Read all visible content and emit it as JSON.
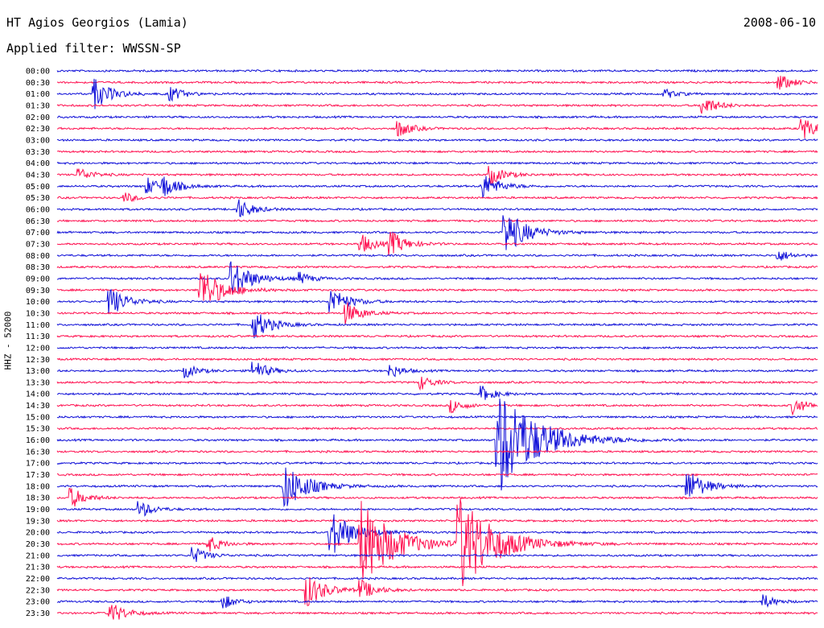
{
  "header": {
    "station": "HT Agios Georgios (Lamia)",
    "date": "2008-06-10",
    "filter": "Applied filter: WWSSN-SP"
  },
  "chart_data": {
    "type": "line",
    "title": "HT Agios Georgios (Lamia)",
    "ylabel": "HHZ - 52000",
    "xlabel": "",
    "trace_colors": [
      "#1010d8",
      "#ff1050"
    ],
    "rows": [
      "00:00",
      "00:30",
      "01:00",
      "01:30",
      "02:00",
      "02:30",
      "03:00",
      "03:30",
      "04:00",
      "04:30",
      "05:00",
      "05:30",
      "06:00",
      "06:30",
      "07:00",
      "07:30",
      "08:00",
      "08:30",
      "09:00",
      "09:30",
      "10:00",
      "10:30",
      "11:00",
      "11:30",
      "12:00",
      "12:30",
      "13:00",
      "13:30",
      "14:00",
      "14:30",
      "15:00",
      "15:30",
      "16:00",
      "16:30",
      "17:00",
      "17:30",
      "18:00",
      "18:30",
      "19:00",
      "19:30",
      "20:00",
      "20:30",
      "21:00",
      "21:30",
      "22:00",
      "22:30",
      "23:00",
      "23:30"
    ],
    "events": [
      {
        "row": "00:30",
        "pos": 0.95,
        "amp": 10
      },
      {
        "row": "01:00",
        "pos": 0.05,
        "amp": 18
      },
      {
        "row": "01:00",
        "pos": 0.15,
        "amp": 9
      },
      {
        "row": "01:00",
        "pos": 0.8,
        "amp": 6
      },
      {
        "row": "01:30",
        "pos": 0.85,
        "amp": 12
      },
      {
        "row": "02:30",
        "pos": 0.45,
        "amp": 10
      },
      {
        "row": "02:30",
        "pos": 0.98,
        "amp": 14
      },
      {
        "row": "04:30",
        "pos": 0.03,
        "amp": 8
      },
      {
        "row": "04:30",
        "pos": 0.57,
        "amp": 12
      },
      {
        "row": "05:00",
        "pos": 0.12,
        "amp": 10
      },
      {
        "row": "05:00",
        "pos": 0.14,
        "amp": 12
      },
      {
        "row": "05:00",
        "pos": 0.56,
        "amp": 16
      },
      {
        "row": "05:30",
        "pos": 0.09,
        "amp": 6
      },
      {
        "row": "06:00",
        "pos": 0.24,
        "amp": 12
      },
      {
        "row": "07:00",
        "pos": 0.59,
        "amp": 28
      },
      {
        "row": "07:30",
        "pos": 0.4,
        "amp": 12
      },
      {
        "row": "07:30",
        "pos": 0.44,
        "amp": 14
      },
      {
        "row": "08:00",
        "pos": 0.95,
        "amp": 7
      },
      {
        "row": "09:00",
        "pos": 0.23,
        "amp": 24
      },
      {
        "row": "09:00",
        "pos": 0.32,
        "amp": 7
      },
      {
        "row": "09:30",
        "pos": 0.19,
        "amp": 28
      },
      {
        "row": "10:00",
        "pos": 0.07,
        "amp": 18
      },
      {
        "row": "10:00",
        "pos": 0.36,
        "amp": 18
      },
      {
        "row": "10:30",
        "pos": 0.38,
        "amp": 14
      },
      {
        "row": "11:00",
        "pos": 0.26,
        "amp": 18
      },
      {
        "row": "13:00",
        "pos": 0.17,
        "amp": 8
      },
      {
        "row": "13:00",
        "pos": 0.26,
        "amp": 12
      },
      {
        "row": "13:00",
        "pos": 0.44,
        "amp": 8
      },
      {
        "row": "13:30",
        "pos": 0.48,
        "amp": 8
      },
      {
        "row": "14:00",
        "pos": 0.56,
        "amp": 9
      },
      {
        "row": "14:30",
        "pos": 0.52,
        "amp": 8
      },
      {
        "row": "14:30",
        "pos": 0.97,
        "amp": 10
      },
      {
        "row": "16:00",
        "pos": 0.58,
        "amp": 70
      },
      {
        "row": "18:00",
        "pos": 0.83,
        "amp": 20
      },
      {
        "row": "18:00",
        "pos": 0.3,
        "amp": 30
      },
      {
        "row": "18:30",
        "pos": 0.02,
        "amp": 12
      },
      {
        "row": "19:00",
        "pos": 0.11,
        "amp": 10
      },
      {
        "row": "20:00",
        "pos": 0.36,
        "amp": 30
      },
      {
        "row": "20:30",
        "pos": 0.4,
        "amp": 55
      },
      {
        "row": "20:30",
        "pos": 0.53,
        "amp": 60
      },
      {
        "row": "20:30",
        "pos": 0.2,
        "amp": 10
      },
      {
        "row": "21:00",
        "pos": 0.18,
        "amp": 10
      },
      {
        "row": "22:30",
        "pos": 0.33,
        "amp": 20
      },
      {
        "row": "22:30",
        "pos": 0.4,
        "amp": 12
      },
      {
        "row": "23:00",
        "pos": 0.22,
        "amp": 8
      },
      {
        "row": "23:00",
        "pos": 0.93,
        "amp": 8
      },
      {
        "row": "23:30",
        "pos": 0.07,
        "amp": 14
      }
    ]
  }
}
